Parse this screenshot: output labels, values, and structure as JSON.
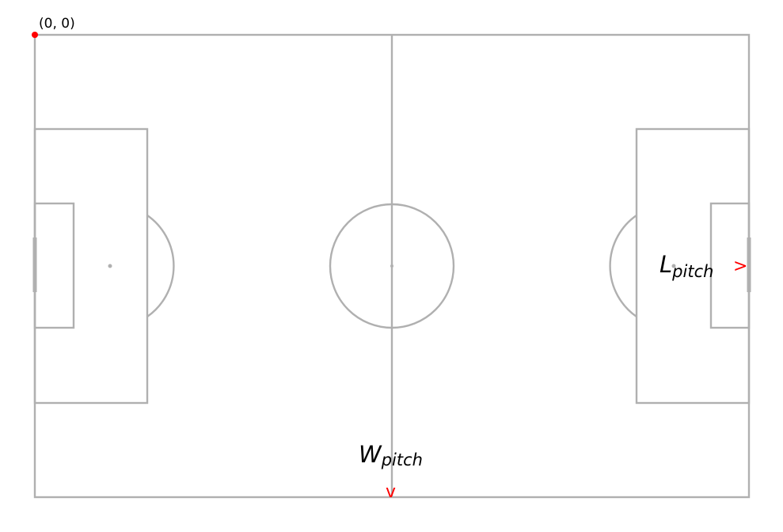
{
  "diagram": {
    "origin_label": "(0, 0)",
    "length_label": {
      "main": "L",
      "sub": "pitch"
    },
    "width_label": {
      "main": "W",
      "sub": "pitch"
    },
    "length_arrow": ">",
    "width_arrow": "v",
    "colors": {
      "lines": "#b0b0b0",
      "accent": "#ff0000",
      "text": "#000000",
      "background": "#ffffff"
    }
  }
}
